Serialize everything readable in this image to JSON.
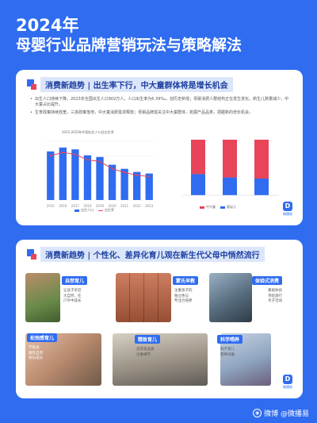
{
  "header": {
    "year": "2024年",
    "title": "母婴行业品牌营销玩法与策略解法"
  },
  "section1": {
    "title": "消费新趋势 | 出生率下行，中大童群体将是增长机会",
    "bullets": [
      "出生人口持续下降，2023年全国出生人口902万人，人口出生率为6.39‰，创历史新低；母婴消费人群结构正在发生变化，新生儿数量减少，中大童占比提升。",
      "生育政策持续放宽，三孩政策落地，中大童消费需求释放；母婴品牌需关注中大童群体，拓展产品品类，把握新的增长机会。"
    ],
    "chart_left_title": "2015-2023年中国出生人口及出生率",
    "chart_left_legend": [
      "出生人口",
      "出生率"
    ],
    "chart_right_legend": [
      "中大童",
      "婴幼儿"
    ],
    "badge": "微播易"
  },
  "chart_data": [
    {
      "type": "bar",
      "title": "2015-2023年中国出生人口及出生率",
      "categories": [
        "2015",
        "2016",
        "2017",
        "2018",
        "2019",
        "2020",
        "2021",
        "2022",
        "2023"
      ],
      "series": [
        {
          "name": "出生人口",
          "values": [
            1655,
            1786,
            1723,
            1523,
            1465,
            1200,
            1062,
            956,
            902
          ]
        },
        {
          "name": "出生率",
          "values": [
            12.07,
            12.95,
            12.43,
            10.94,
            10.48,
            8.52,
            7.52,
            6.77,
            6.39
          ]
        }
      ],
      "colors": {
        "bar": "#2f6cf0",
        "line": "#e8445a"
      }
    },
    {
      "type": "bar",
      "stacked": true,
      "categories": [
        "",
        "",
        ""
      ],
      "series": [
        {
          "name": "中大童",
          "values": [
            62,
            68,
            70
          ]
        },
        {
          "name": "婴幼儿",
          "values": [
            38,
            32,
            30
          ]
        }
      ],
      "colors": {
        "top": "#e8445a",
        "bottom": "#2f6cf0"
      }
    }
  ],
  "section2": {
    "title": "消费新趋势 | 个性化、差异化育儿观在新生代父母中悄然流行",
    "tags": [
      "自然育儿",
      "蒙氏早教",
      "体验式消费",
      "松弛感育儿",
      "精致育儿",
      "科学喂养"
    ],
    "descs": [
      [
        "让孩子亲近",
        "大自然，在",
        "户外中成长"
      ],
      [
        "注重孩子的",
        "独立性与",
        "专注力培养"
      ],
      [
        "重视体验",
        "带娃旅行",
        "亲子活动"
      ],
      [
        "不焦虑",
        "顺其自然",
        "快乐成长"
      ],
      [
        "追求高品质",
        "注重细节"
      ],
      [
        "科学育儿",
        "营养均衡"
      ]
    ],
    "badge": "微播易"
  },
  "watermark": "微博 @微播易",
  "colors": {
    "primary": "#2f6cf0",
    "accent": "#e8445a"
  }
}
